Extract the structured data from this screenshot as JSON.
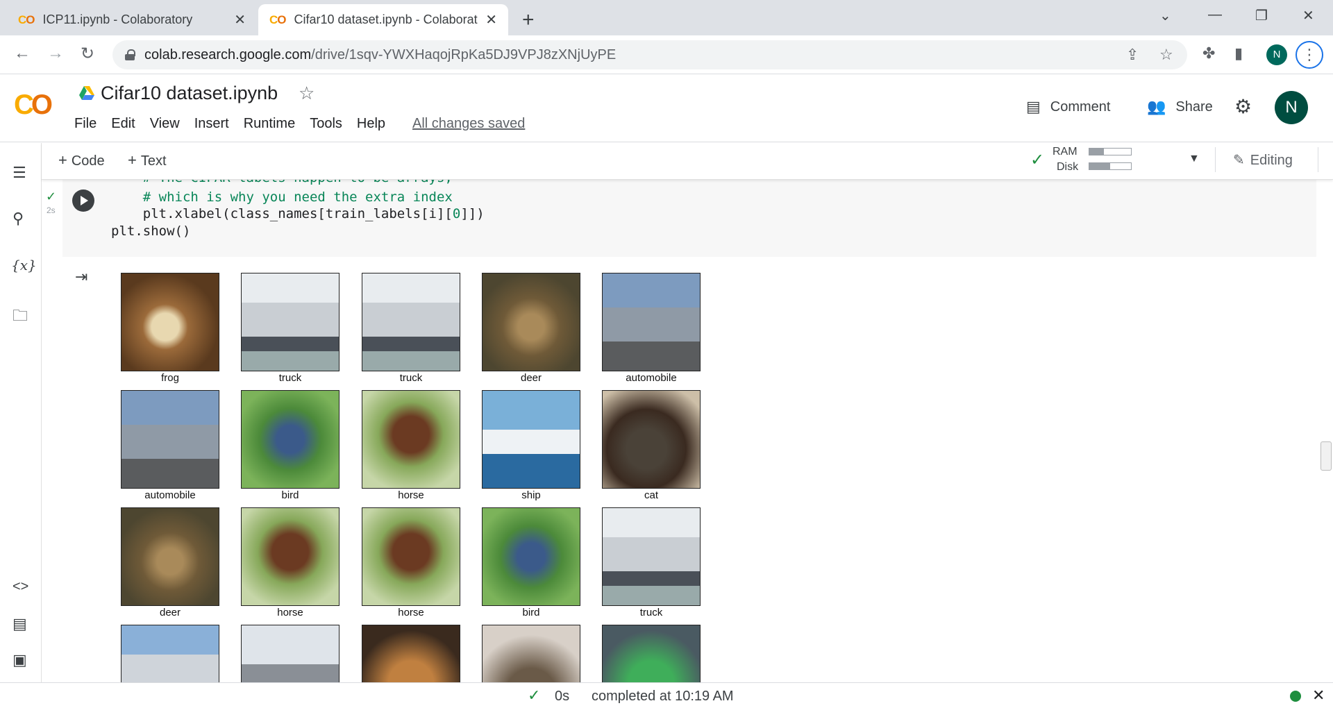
{
  "browser": {
    "tabs": [
      {
        "title": "ICP11.ipynb - Colaboratory",
        "active": false
      },
      {
        "title": "Cifar10 dataset.ipynb - Colaborat",
        "active": true
      }
    ],
    "url_host": "colab.research.google.com",
    "url_path": "/drive/1sqv-YWXHaqojRpKa5DJ9VPJ8zXNjUyPE",
    "profile_initial": "N"
  },
  "colab": {
    "logo": "CO",
    "notebook_title": "Cifar10 dataset.ipynb",
    "menu": [
      "File",
      "Edit",
      "View",
      "Insert",
      "Runtime",
      "Tools",
      "Help"
    ],
    "save_status": "All changes saved",
    "comment_label": "Comment",
    "share_label": "Share",
    "avatar_initial": "N"
  },
  "toolbar": {
    "add_code": "Code",
    "add_text": "Text",
    "ram_label": "RAM",
    "disk_label": "Disk",
    "ram_usage": 0.35,
    "disk_usage": 0.5,
    "mode": "Editing"
  },
  "cell": {
    "exec_time": "2s",
    "lines": [
      {
        "text": "    # The CIFAR labels happen to be arrays,",
        "kind": "comment"
      },
      {
        "text": "    # which is why you need the extra index",
        "kind": "comment"
      },
      {
        "text": "    plt.xlabel(class_names[train_labels[i][0]])",
        "kind": "code"
      },
      {
        "text": "plt.show()",
        "kind": "code"
      }
    ]
  },
  "output": {
    "labels_row1": [
      "frog",
      "truck",
      "truck",
      "deer",
      "automobile"
    ],
    "labels_row2": [
      "automobile",
      "bird",
      "horse",
      "ship",
      "cat"
    ],
    "labels_row3": [
      "deer",
      "horse",
      "horse",
      "bird",
      "truck"
    ],
    "row4_count": 5
  },
  "status": {
    "duration": "0s",
    "message": "completed at 10:19 AM"
  },
  "colors": {
    "accent_green": "#1e8e3e",
    "colab_orange": "#f9ab00",
    "comment_green": "#098658"
  }
}
